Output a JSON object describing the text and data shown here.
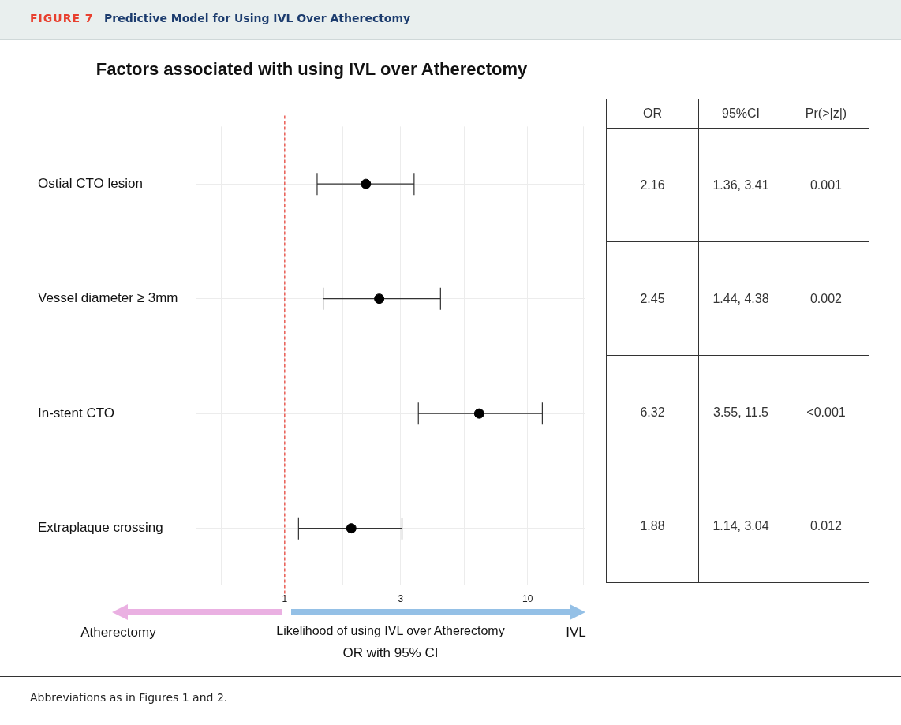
{
  "chart_data": [
    {
      "type": "scatter",
      "orientation": "horizontal",
      "title": "Factors associated with using IVL over Atherectomy",
      "xlabel": "Likelihood of using IVL over Atherectomy",
      "categories": [
        "Ostial CTO lesion",
        "Vessel diameter ≥ 3mm",
        "In-stent CTO",
        "Extraplaque crossing"
      ],
      "values": [
        2.16,
        2.45,
        6.32,
        1.88
      ],
      "errors": [
        [
          1.36,
          3.41
        ],
        [
          1.44,
          4.38
        ],
        [
          3.55,
          11.5
        ],
        [
          1.14,
          3.04
        ]
      ],
      "color": "#000000",
      "marker": "circle",
      "log": "x",
      "grid": true,
      "xlim": [
        0.43,
        17.3
      ],
      "xticks": [
        {
          "value": 0.55,
          "label": null
        },
        1,
        {
          "value": 1.73,
          "label": null
        },
        3,
        {
          "value": 5.48,
          "label": null
        },
        10,
        {
          "value": 17,
          "label": null
        }
      ],
      "ref_lines": [
        {
          "axis": "x",
          "value": 1,
          "color": "#e8463c",
          "line_style": "dashed"
        }
      ],
      "annotations": [
        "FIGURE 7",
        "Predictive Model for Using IVL Over Atherectomy",
        "Atherectomy",
        "IVL",
        "OR with 95% CI",
        "Abbreviations as in Figures 1 and 2."
      ]
    },
    {
      "type": "other",
      "categories": [
        "OR",
        "95%CI",
        "Pr(>|z|)"
      ],
      "cell_labels": [
        [
          "2.16",
          "1.36, 3.41",
          "0.001"
        ],
        [
          "2.45",
          "1.44, 4.38",
          "0.002"
        ],
        [
          "6.32",
          "3.55, 11.5",
          "<0.001"
        ],
        [
          "1.88",
          "1.14, 3.04",
          "0.012"
        ]
      ]
    }
  ]
}
